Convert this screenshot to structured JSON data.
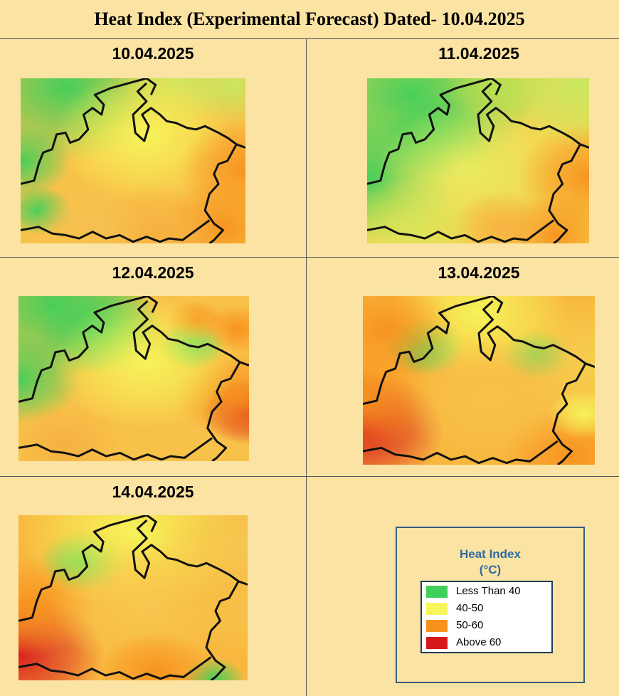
{
  "header": {
    "title": "Heat Index (Experimental Forecast) Dated- 10.04.2025"
  },
  "panels": [
    {
      "date": "10.04.2025"
    },
    {
      "date": "11.04.2025"
    },
    {
      "date": "12.04.2025"
    },
    {
      "date": "13.04.2025"
    },
    {
      "date": "14.04.2025"
    }
  ],
  "legend": {
    "title_line1": "Heat Index",
    "title_line2": "(°C)",
    "items": [
      {
        "label": "Less Than 40",
        "color": "#3fcf5a"
      },
      {
        "label": "40-50",
        "color": "#f6f65a"
      },
      {
        "label": "50-60",
        "color": "#f7921e"
      },
      {
        "label": "Above 60",
        "color": "#d7191c"
      }
    ]
  }
}
